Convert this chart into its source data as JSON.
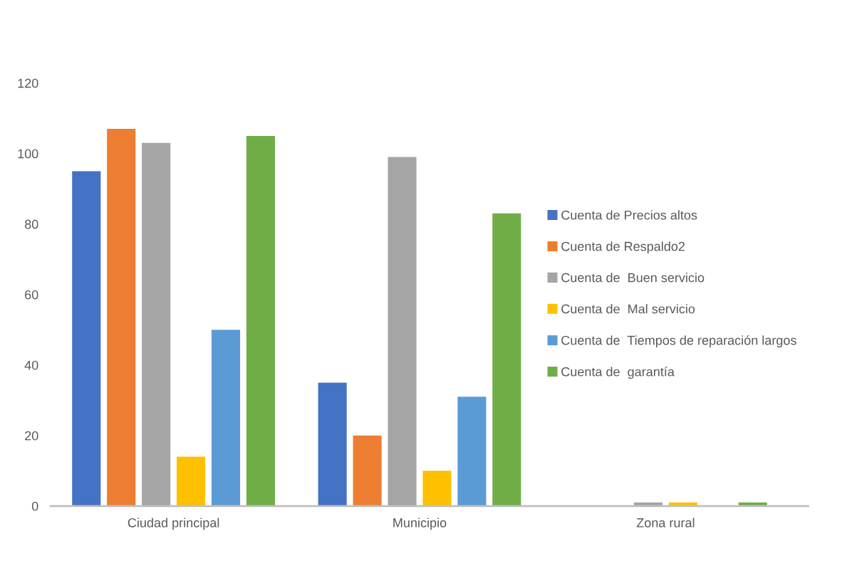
{
  "chart_data": {
    "type": "bar",
    "categories": [
      "Ciudad principal",
      "Municipio",
      "Zona rural"
    ],
    "series": [
      {
        "name": "Cuenta de Precios altos",
        "color": "#4472c4",
        "values": [
          95,
          35,
          0
        ]
      },
      {
        "name": "Cuenta de Respaldo2",
        "color": "#ed7d31",
        "values": [
          107,
          20,
          0
        ]
      },
      {
        "name": "Cuenta de  Buen servicio",
        "color": "#a5a5a5",
        "values": [
          103,
          99,
          1
        ]
      },
      {
        "name": "Cuenta de  Mal servicio",
        "color": "#ffc000",
        "values": [
          14,
          10,
          1
        ]
      },
      {
        "name": "Cuenta de  Tiempos de reparación largos",
        "color": "#5b9bd5",
        "values": [
          50,
          31,
          0
        ]
      },
      {
        "name": "Cuenta de  garantía",
        "color": "#70ad47",
        "values": [
          105,
          83,
          1
        ]
      }
    ],
    "ylim": [
      0,
      120
    ],
    "yticks": [
      0,
      20,
      40,
      60,
      80,
      100,
      120
    ],
    "grid": false,
    "legend": "right"
  }
}
